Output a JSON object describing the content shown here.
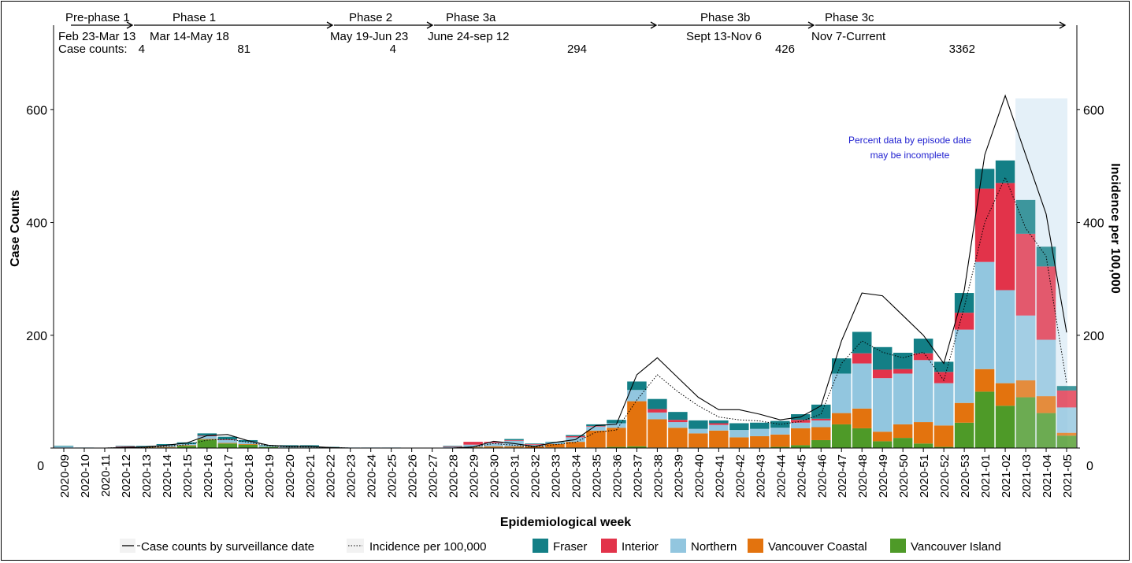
{
  "colors": {
    "fraser": "#137f86",
    "interior": "#e2334a",
    "northern": "#92c6df",
    "vancouver_coastal": "#e3730e",
    "vancouver_island": "#4e9a28",
    "incomplete_shade": "#e4f0f8",
    "note": "#1f1fd0"
  },
  "phases": [
    {
      "label": "Pre-phase 1",
      "dates": "Feb 23-Mar 13",
      "count": "4"
    },
    {
      "label": "Phase 1",
      "dates": "Mar 14-May 18",
      "count": "81"
    },
    {
      "label": "Phase 2",
      "dates": "May 19-Jun 23",
      "count": "4"
    },
    {
      "label": "Phase 3a",
      "dates": "June 24-sep 12",
      "count": "294"
    },
    {
      "label": "Phase 3b",
      "dates": "Sept 13-Nov 6",
      "count": "426"
    },
    {
      "label": "Phase 3c",
      "dates": "Nov 7-Current",
      "count": "3362"
    }
  ],
  "case_counts_prefix": "Case counts: ",
  "note_lines": [
    "Percent data by episode date",
    "may be incomplete"
  ],
  "chart_data": {
    "type": "bar",
    "stacked": true,
    "xlabel": "Epidemiological week",
    "ylabel": "Case Counts",
    "y2label": "Incidence per 100,000",
    "ylim": [
      0,
      680
    ],
    "yticks": [
      0,
      200,
      400,
      600
    ],
    "y2ticks": [
      0,
      200,
      400,
      600
    ],
    "incomplete_from": "2021-03",
    "categories": [
      "2020-09",
      "2020-10",
      "2020-11",
      "2020-12",
      "2020-13",
      "2020-14",
      "2020-15",
      "2020-16",
      "2020-17",
      "2020-18",
      "2020-19",
      "2020-20",
      "2020-21",
      "2020-22",
      "2020-23",
      "2020-24",
      "2020-25",
      "2020-26",
      "2020-27",
      "2020-28",
      "2020-29",
      "2020-30",
      "2020-31",
      "2020-32",
      "2020-33",
      "2020-34",
      "2020-35",
      "2020-36",
      "2020-37",
      "2020-38",
      "2020-39",
      "2020-40",
      "2020-41",
      "2020-42",
      "2020-43",
      "2020-44",
      "2020-45",
      "2020-46",
      "2020-47",
      "2020-48",
      "2020-49",
      "2020-50",
      "2020-51",
      "2020-52",
      "2020-53",
      "2021-01",
      "2021-02",
      "2021-03",
      "2021-04",
      "2021-05"
    ],
    "series": [
      {
        "name": "Vancouver Island",
        "color_key": "vancouver_island",
        "values": [
          0,
          0,
          0,
          1,
          1,
          1,
          4,
          15,
          8,
          6,
          2,
          1,
          1,
          0,
          0,
          0,
          0,
          0,
          0,
          0,
          1,
          1,
          1,
          0,
          1,
          1,
          1,
          2,
          3,
          1,
          1,
          1,
          1,
          1,
          1,
          2,
          5,
          14,
          42,
          35,
          12,
          18,
          8,
          2,
          45,
          100,
          75,
          90,
          62,
          22
        ]
      },
      {
        "name": "Vancouver Coastal",
        "color_key": "vancouver_coastal",
        "values": [
          0,
          0,
          0,
          0,
          1,
          1,
          1,
          1,
          1,
          1,
          0,
          0,
          0,
          0,
          0,
          0,
          0,
          0,
          0,
          0,
          1,
          2,
          2,
          3,
          6,
          10,
          30,
          34,
          80,
          50,
          35,
          25,
          30,
          18,
          20,
          22,
          30,
          23,
          20,
          35,
          17,
          24,
          38,
          38,
          35,
          40,
          40,
          30,
          30,
          5
        ]
      },
      {
        "name": "Northern",
        "color_key": "northern",
        "values": [
          3,
          1,
          0,
          1,
          1,
          3,
          2,
          5,
          5,
          4,
          2,
          2,
          2,
          1,
          1,
          1,
          1,
          0,
          0,
          2,
          4,
          6,
          10,
          3,
          3,
          8,
          7,
          8,
          20,
          12,
          10,
          8,
          10,
          13,
          13,
          12,
          10,
          12,
          70,
          80,
          95,
          90,
          110,
          75,
          130,
          190,
          165,
          115,
          100,
          45
        ]
      },
      {
        "name": "Interior",
        "color_key": "interior",
        "values": [
          0,
          0,
          0,
          1,
          0,
          0,
          0,
          1,
          1,
          0,
          0,
          0,
          0,
          0,
          0,
          0,
          0,
          0,
          0,
          1,
          5,
          2,
          1,
          1,
          0,
          2,
          1,
          0,
          0,
          6,
          4,
          0,
          3,
          0,
          0,
          0,
          5,
          3,
          0,
          18,
          15,
          8,
          12,
          20,
          30,
          130,
          190,
          145,
          130,
          30
        ]
      },
      {
        "name": "Fraser",
        "color_key": "fraser",
        "values": [
          1,
          0,
          0,
          1,
          1,
          2,
          3,
          4,
          5,
          3,
          1,
          2,
          2,
          1,
          0,
          0,
          0,
          0,
          0,
          1,
          0,
          0,
          2,
          1,
          1,
          2,
          3,
          6,
          15,
          18,
          14,
          15,
          5,
          12,
          11,
          12,
          10,
          25,
          27,
          38,
          40,
          29,
          26,
          18,
          35,
          35,
          40,
          60,
          35,
          8
        ]
      }
    ],
    "lines": [
      {
        "name": "Case counts by surveillance date",
        "style": "solid",
        "values": [
          0,
          0,
          0,
          1,
          2,
          5,
          9,
          22,
          24,
          13,
          5,
          3,
          3,
          1,
          0,
          0,
          0,
          0,
          0,
          0,
          2,
          12,
          8,
          3,
          10,
          15,
          40,
          42,
          130,
          160,
          125,
          90,
          68,
          68,
          60,
          50,
          55,
          75,
          190,
          275,
          270,
          235,
          200,
          150,
          280,
          520,
          625,
          520,
          415,
          205
        ]
      },
      {
        "name": "Incidence per 100,000",
        "style": "dotted",
        "values": [
          0,
          0,
          0,
          1,
          1,
          3,
          6,
          14,
          16,
          10,
          4,
          2,
          2,
          1,
          0,
          0,
          0,
          0,
          0,
          0,
          2,
          8,
          5,
          2,
          6,
          10,
          28,
          32,
          85,
          130,
          100,
          75,
          55,
          50,
          48,
          42,
          47,
          60,
          150,
          190,
          170,
          160,
          170,
          120,
          250,
          400,
          480,
          390,
          340,
          115
        ]
      }
    ]
  }
}
